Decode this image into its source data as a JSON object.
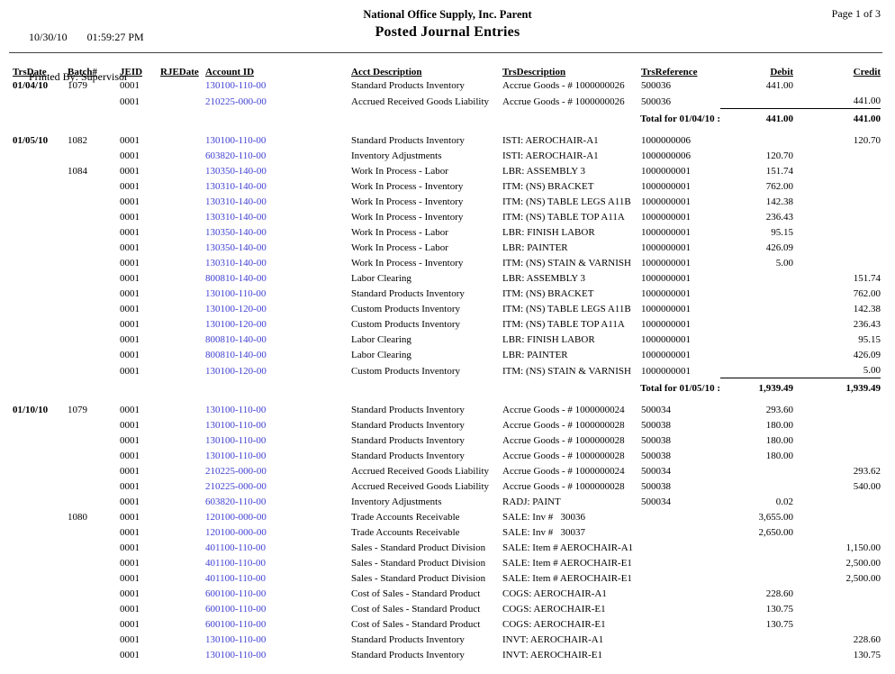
{
  "page": {
    "printed_date": "10/30/10",
    "printed_time": "01:59:27 PM",
    "printed_by": "Printed By: Supervisor",
    "company": "National Office Supply, Inc. Parent",
    "report_title": "Posted Journal Entries",
    "page_info": "Page 1 of 3"
  },
  "colors": {
    "account_link": "#3f3fd3"
  },
  "table": {
    "columns": [
      "TrsDate",
      "Batch#",
      "JEID",
      "RJEDate",
      "Account ID",
      "Acct Description",
      "TrsDescription",
      "TrsReference",
      "Debit",
      "Credit"
    ],
    "groups": [
      {
        "rows": [
          {
            "date": "01/04/10",
            "batch": "1079",
            "jeid": "0001",
            "rjedate": "",
            "account": "130100-110-00",
            "acct": "Standard Products Inventory",
            "trs": "Accrue Goods - # 1000000026",
            "ref": "500036",
            "debit": "441.00",
            "credit": ""
          },
          {
            "date": "",
            "batch": "",
            "jeid": "0001",
            "rjedate": "",
            "account": "210225-000-00",
            "acct": "Accrued Received Goods Liability",
            "trs": "Accrue Goods - # 1000000026",
            "ref": "500036",
            "debit": "",
            "credit": "441.00"
          }
        ],
        "total": {
          "label": "Total for 01/04/10 :",
          "debit": "441.00",
          "credit": "441.00"
        }
      },
      {
        "rows": [
          {
            "date": "01/05/10",
            "batch": "1082",
            "jeid": "0001",
            "rjedate": "",
            "account": "130100-110-00",
            "acct": "Standard Products Inventory",
            "trs": "ISTI: AEROCHAIR-A1",
            "ref": "1000000006",
            "debit": "",
            "credit": "120.70"
          },
          {
            "date": "",
            "batch": "",
            "jeid": "0001",
            "rjedate": "",
            "account": "603820-110-00",
            "acct": "Inventory Adjustments",
            "trs": "ISTI: AEROCHAIR-A1",
            "ref": "1000000006",
            "debit": "120.70",
            "credit": ""
          },
          {
            "date": "",
            "batch": "1084",
            "jeid": "0001",
            "rjedate": "",
            "account": "130350-140-00",
            "acct": "Work In Process - Labor",
            "trs": "LBR: ASSEMBLY 3",
            "ref": "1000000001",
            "debit": "151.74",
            "credit": ""
          },
          {
            "date": "",
            "batch": "",
            "jeid": "0001",
            "rjedate": "",
            "account": "130310-140-00",
            "acct": "Work In Process - Inventory",
            "trs": "ITM: (NS) BRACKET",
            "ref": "1000000001",
            "debit": "762.00",
            "credit": ""
          },
          {
            "date": "",
            "batch": "",
            "jeid": "0001",
            "rjedate": "",
            "account": "130310-140-00",
            "acct": "Work In Process - Inventory",
            "trs": "ITM: (NS) TABLE LEGS A11B",
            "ref": "1000000001",
            "debit": "142.38",
            "credit": ""
          },
          {
            "date": "",
            "batch": "",
            "jeid": "0001",
            "rjedate": "",
            "account": "130310-140-00",
            "acct": "Work In Process - Inventory",
            "trs": "ITM: (NS) TABLE TOP A11A",
            "ref": "1000000001",
            "debit": "236.43",
            "credit": ""
          },
          {
            "date": "",
            "batch": "",
            "jeid": "0001",
            "rjedate": "",
            "account": "130350-140-00",
            "acct": "Work In Process - Labor",
            "trs": "LBR: FINISH LABOR",
            "ref": "1000000001",
            "debit": "95.15",
            "credit": ""
          },
          {
            "date": "",
            "batch": "",
            "jeid": "0001",
            "rjedate": "",
            "account": "130350-140-00",
            "acct": "Work In Process - Labor",
            "trs": "LBR: PAINTER",
            "ref": "1000000001",
            "debit": "426.09",
            "credit": ""
          },
          {
            "date": "",
            "batch": "",
            "jeid": "0001",
            "rjedate": "",
            "account": "130310-140-00",
            "acct": "Work In Process - Inventory",
            "trs": "ITM: (NS) STAIN & VARNISH",
            "ref": "1000000001",
            "debit": "5.00",
            "credit": ""
          },
          {
            "date": "",
            "batch": "",
            "jeid": "0001",
            "rjedate": "",
            "account": "800810-140-00",
            "acct": "Labor Clearing",
            "trs": "LBR: ASSEMBLY 3",
            "ref": "1000000001",
            "debit": "",
            "credit": "151.74"
          },
          {
            "date": "",
            "batch": "",
            "jeid": "0001",
            "rjedate": "",
            "account": "130100-110-00",
            "acct": "Standard Products Inventory",
            "trs": "ITM: (NS) BRACKET",
            "ref": "1000000001",
            "debit": "",
            "credit": "762.00"
          },
          {
            "date": "",
            "batch": "",
            "jeid": "0001",
            "rjedate": "",
            "account": "130100-120-00",
            "acct": "Custom Products Inventory",
            "trs": "ITM: (NS) TABLE LEGS A11B",
            "ref": "1000000001",
            "debit": "",
            "credit": "142.38"
          },
          {
            "date": "",
            "batch": "",
            "jeid": "0001",
            "rjedate": "",
            "account": "130100-120-00",
            "acct": "Custom Products Inventory",
            "trs": "ITM: (NS) TABLE TOP A11A",
            "ref": "1000000001",
            "debit": "",
            "credit": "236.43"
          },
          {
            "date": "",
            "batch": "",
            "jeid": "0001",
            "rjedate": "",
            "account": "800810-140-00",
            "acct": "Labor Clearing",
            "trs": "LBR: FINISH LABOR",
            "ref": "1000000001",
            "debit": "",
            "credit": "95.15"
          },
          {
            "date": "",
            "batch": "",
            "jeid": "0001",
            "rjedate": "",
            "account": "800810-140-00",
            "acct": "Labor Clearing",
            "trs": "LBR: PAINTER",
            "ref": "1000000001",
            "debit": "",
            "credit": "426.09"
          },
          {
            "date": "",
            "batch": "",
            "jeid": "0001",
            "rjedate": "",
            "account": "130100-120-00",
            "acct": "Custom Products Inventory",
            "trs": "ITM: (NS) STAIN & VARNISH",
            "ref": "1000000001",
            "debit": "",
            "credit": "5.00"
          }
        ],
        "total": {
          "label": "Total for 01/05/10 :",
          "debit": "1,939.49",
          "credit": "1,939.49"
        }
      },
      {
        "rows": [
          {
            "date": "01/10/10",
            "batch": "1079",
            "jeid": "0001",
            "rjedate": "",
            "account": "130100-110-00",
            "acct": "Standard Products Inventory",
            "trs": "Accrue Goods - # 1000000024",
            "ref": "500034",
            "debit": "293.60",
            "credit": ""
          },
          {
            "date": "",
            "batch": "",
            "jeid": "0001",
            "rjedate": "",
            "account": "130100-110-00",
            "acct": "Standard Products Inventory",
            "trs": "Accrue Goods - # 1000000028",
            "ref": "500038",
            "debit": "180.00",
            "credit": ""
          },
          {
            "date": "",
            "batch": "",
            "jeid": "0001",
            "rjedate": "",
            "account": "130100-110-00",
            "acct": "Standard Products Inventory",
            "trs": "Accrue Goods - # 1000000028",
            "ref": "500038",
            "debit": "180.00",
            "credit": ""
          },
          {
            "date": "",
            "batch": "",
            "jeid": "0001",
            "rjedate": "",
            "account": "130100-110-00",
            "acct": "Standard Products Inventory",
            "trs": "Accrue Goods - # 1000000028",
            "ref": "500038",
            "debit": "180.00",
            "credit": ""
          },
          {
            "date": "",
            "batch": "",
            "jeid": "0001",
            "rjedate": "",
            "account": "210225-000-00",
            "acct": "Accrued Received Goods Liability",
            "trs": "Accrue Goods - # 1000000024",
            "ref": "500034",
            "debit": "",
            "credit": "293.62"
          },
          {
            "date": "",
            "batch": "",
            "jeid": "0001",
            "rjedate": "",
            "account": "210225-000-00",
            "acct": "Accrued Received Goods Liability",
            "trs": "Accrue Goods - # 1000000028",
            "ref": "500038",
            "debit": "",
            "credit": "540.00"
          },
          {
            "date": "",
            "batch": "",
            "jeid": "0001",
            "rjedate": "",
            "account": "603820-110-00",
            "acct": "Inventory Adjustments",
            "trs": "RADJ: PAINT",
            "ref": "500034",
            "debit": "0.02",
            "credit": ""
          },
          {
            "date": "",
            "batch": "1080",
            "jeid": "0001",
            "rjedate": "",
            "account": "120100-000-00",
            "acct": "Trade Accounts Receivable",
            "trs": "SALE: Inv #   30036",
            "ref": "",
            "debit": "3,655.00",
            "credit": ""
          },
          {
            "date": "",
            "batch": "",
            "jeid": "0001",
            "rjedate": "",
            "account": "120100-000-00",
            "acct": "Trade Accounts Receivable",
            "trs": "SALE: Inv #   30037",
            "ref": "",
            "debit": "2,650.00",
            "credit": ""
          },
          {
            "date": "",
            "batch": "",
            "jeid": "0001",
            "rjedate": "",
            "account": "401100-110-00",
            "acct": "Sales - Standard Product Division",
            "trs": "SALE: Item # AEROCHAIR-A1",
            "ref": "",
            "debit": "",
            "credit": "1,150.00"
          },
          {
            "date": "",
            "batch": "",
            "jeid": "0001",
            "rjedate": "",
            "account": "401100-110-00",
            "acct": "Sales - Standard Product Division",
            "trs": "SALE: Item # AEROCHAIR-E1",
            "ref": "",
            "debit": "",
            "credit": "2,500.00"
          },
          {
            "date": "",
            "batch": "",
            "jeid": "0001",
            "rjedate": "",
            "account": "401100-110-00",
            "acct": "Sales - Standard Product Division",
            "trs": "SALE: Item # AEROCHAIR-E1",
            "ref": "",
            "debit": "",
            "credit": "2,500.00"
          },
          {
            "date": "",
            "batch": "",
            "jeid": "0001",
            "rjedate": "",
            "account": "600100-110-00",
            "acct": "Cost of Sales - Standard Product",
            "trs": "COGS: AEROCHAIR-A1",
            "ref": "",
            "debit": "228.60",
            "credit": ""
          },
          {
            "date": "",
            "batch": "",
            "jeid": "0001",
            "rjedate": "",
            "account": "600100-110-00",
            "acct": "Cost of Sales - Standard Product",
            "trs": "COGS: AEROCHAIR-E1",
            "ref": "",
            "debit": "130.75",
            "credit": ""
          },
          {
            "date": "",
            "batch": "",
            "jeid": "0001",
            "rjedate": "",
            "account": "600100-110-00",
            "acct": "Cost of Sales - Standard Product",
            "trs": "COGS: AEROCHAIR-E1",
            "ref": "",
            "debit": "130.75",
            "credit": ""
          },
          {
            "date": "",
            "batch": "",
            "jeid": "0001",
            "rjedate": "",
            "account": "130100-110-00",
            "acct": "Standard Products Inventory",
            "trs": "INVT: AEROCHAIR-A1",
            "ref": "",
            "debit": "",
            "credit": "228.60"
          },
          {
            "date": "",
            "batch": "",
            "jeid": "0001",
            "rjedate": "",
            "account": "130100-110-00",
            "acct": "Standard Products Inventory",
            "trs": "INVT: AEROCHAIR-E1",
            "ref": "",
            "debit": "",
            "credit": "130.75"
          }
        ],
        "total": null
      }
    ]
  }
}
